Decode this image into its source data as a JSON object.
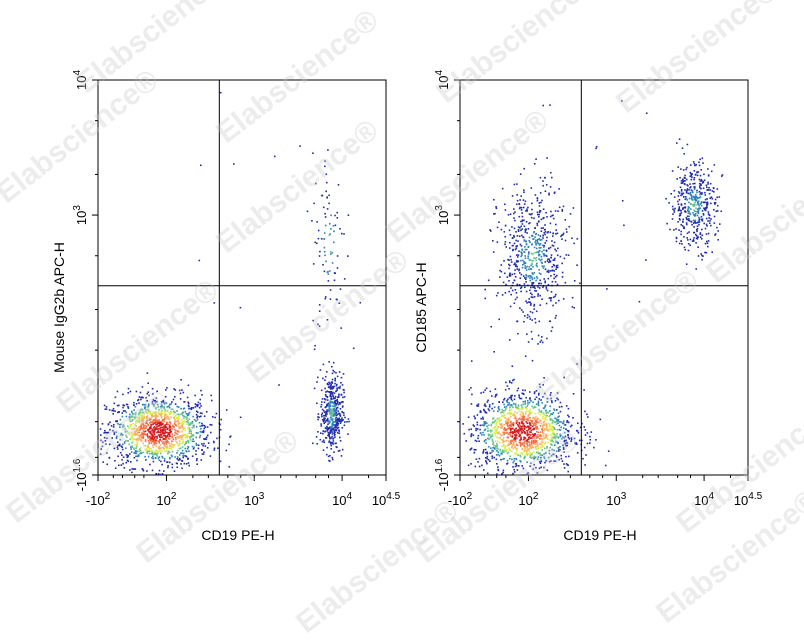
{
  "watermark": "Elabscience®",
  "chart_data": [
    {
      "type": "scatter",
      "subtype": "flow-cytometry-density-plot",
      "xlabel": "CD19 PE-H",
      "ylabel": "Mouse IgG2b APC-H",
      "x_scale": "biexponential",
      "y_scale": "biexponential",
      "xlim": [
        -100,
        31623
      ],
      "ylim": [
        -39.8,
        10000
      ],
      "x_ticks": [
        {
          "value": -100,
          "base": "-10",
          "exp": "2"
        },
        {
          "value": 100,
          "base": "10",
          "exp": "2"
        },
        {
          "value": 1000,
          "base": "10",
          "exp": "3"
        },
        {
          "value": 10000,
          "base": "10",
          "exp": "4"
        },
        {
          "value": 31623,
          "base": "10",
          "exp": "4.5"
        }
      ],
      "y_ticks": [
        {
          "value": -39.8,
          "base": "-10",
          "exp": "1.6"
        },
        {
          "value": 1000,
          "base": "10",
          "exp": "3"
        },
        {
          "value": 10000,
          "base": "10",
          "exp": "4"
        }
      ],
      "quadrant_gates": {
        "x": 400,
        "y": 300
      },
      "populations": [
        {
          "x_center": 80,
          "y_center": 10,
          "x_spread": 0.09,
          "y_spread": 0.045,
          "count": 1300,
          "note": "dense double-negative cluster (hot colors)"
        },
        {
          "x_center": 7500,
          "y_center": 30,
          "x_spread": 0.02,
          "y_spread": 0.05,
          "count": 420,
          "note": "CD19+ population"
        },
        {
          "x_center": 7000,
          "y_center": 600,
          "x_spread": 0.03,
          "y_spread": 0.12,
          "count": 90,
          "note": "sparse CD19+ trail"
        }
      ]
    },
    {
      "type": "scatter",
      "subtype": "flow-cytometry-density-plot",
      "xlabel": "CD19 PE-H",
      "ylabel": "CD185 APC-H",
      "x_scale": "biexponential",
      "y_scale": "biexponential",
      "xlim": [
        -100,
        31623
      ],
      "ylim": [
        -39.8,
        10000
      ],
      "x_ticks": [
        {
          "value": -100,
          "base": "-10",
          "exp": "2"
        },
        {
          "value": 100,
          "base": "10",
          "exp": "2"
        },
        {
          "value": 1000,
          "base": "10",
          "exp": "3"
        },
        {
          "value": 10000,
          "base": "10",
          "exp": "4"
        },
        {
          "value": 31623,
          "base": "10",
          "exp": "4.5"
        }
      ],
      "y_ticks": [
        {
          "value": -39.8,
          "base": "-10",
          "exp": "1.6"
        },
        {
          "value": 1000,
          "base": "10",
          "exp": "3"
        },
        {
          "value": 10000,
          "base": "10",
          "exp": "4"
        }
      ],
      "quadrant_gates": {
        "x": 400,
        "y": 300
      },
      "populations": [
        {
          "x_center": 85,
          "y_center": 10,
          "x_spread": 0.09,
          "y_spread": 0.05,
          "count": 1300,
          "note": "dense double-negative cluster (hot colors)"
        },
        {
          "x_center": 110,
          "y_center": 500,
          "x_spread": 0.06,
          "y_spread": 0.09,
          "count": 620,
          "note": "CD185+ CD19- population"
        },
        {
          "x_center": 7500,
          "y_center": 1200,
          "x_spread": 0.04,
          "y_spread": 0.055,
          "count": 430,
          "note": "CD185+ CD19+ population"
        }
      ]
    }
  ]
}
